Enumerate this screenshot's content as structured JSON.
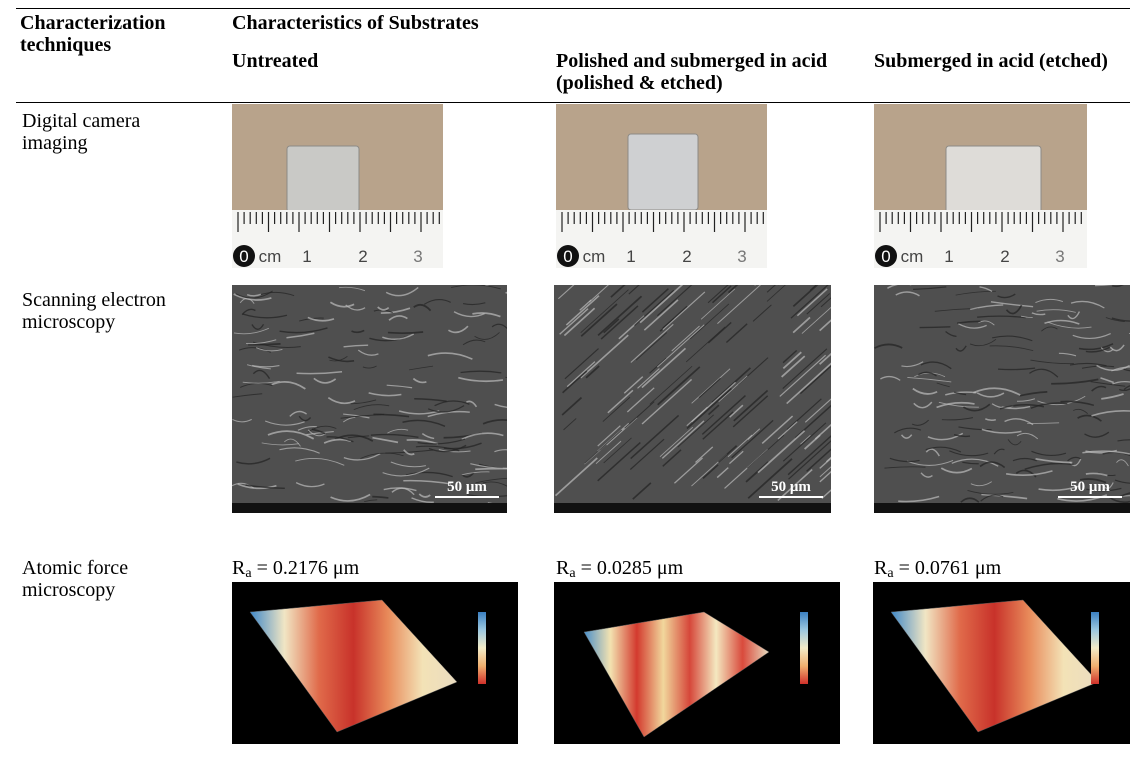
{
  "table": {
    "header": {
      "first_column": "Characterization techniques",
      "group": "Characteristics of Substrates",
      "columns": [
        "Untreated",
        "Polished and submerged in acid (polished & etched)",
        "Submerged in acid (etched)"
      ]
    },
    "rows": [
      {
        "label": "Digital camera imaging"
      },
      {
        "label": "Scanning electron microscopy"
      },
      {
        "label": "Atomic force microscopy",
        "roughness": [
          {
            "symbol": "R",
            "subscript": "a",
            "text": " = 0.2176 μm"
          },
          {
            "symbol": "R",
            "subscript": "a",
            "text": " = 0.0285 μm"
          },
          {
            "symbol": "R",
            "subscript": "a",
            "text": " = 0.0761 μm"
          }
        ]
      }
    ]
  },
  "ruler_labels": [
    "0",
    "cm",
    "1",
    "2",
    "3"
  ],
  "sem_scale_bar": "50 μm"
}
